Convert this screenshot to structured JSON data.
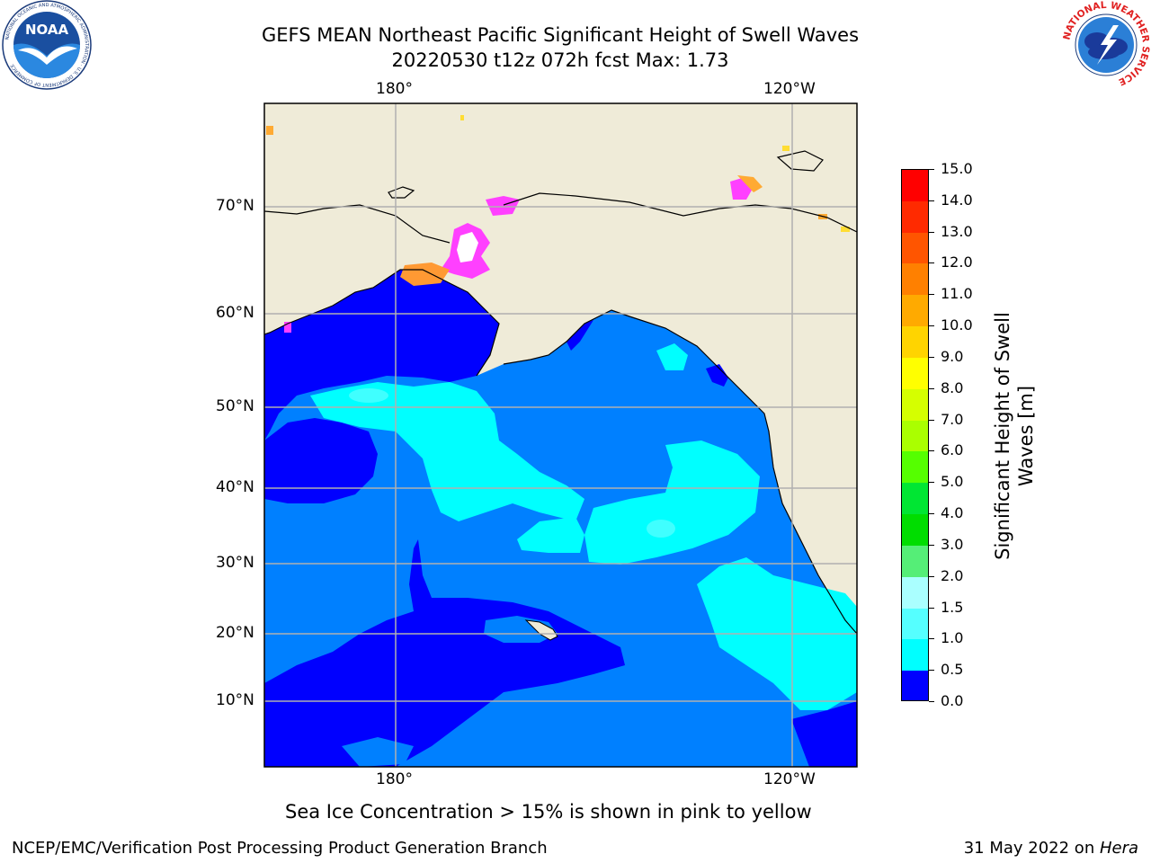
{
  "title": {
    "line1": "GEFS MEAN Northeast Pacific Significant Height of Swell Waves",
    "line2": "20220530 t12z 072h fcst   Max: 1.73"
  },
  "logos": {
    "left": {
      "name": "noaa-logo",
      "text": "NOAA",
      "ring_text": "NATIONAL OCEANIC AND ATMOSPHERIC ADMINISTRATION · U.S. DEPARTMENT OF COMMERCE"
    },
    "right": {
      "name": "nws-logo",
      "ring_text": "NATIONAL WEATHER SERVICE"
    }
  },
  "map": {
    "top_lon_labels": [
      "180°",
      "120°W"
    ],
    "bottom_lon_labels": [
      "180°",
      "120°W"
    ],
    "lat_labels": [
      "70°N",
      "60°N",
      "50°N",
      "40°N",
      "30°N",
      "20°N",
      "10°N"
    ],
    "colors": {
      "land": "#efebd8",
      "c0": "#0000ff",
      "c05": "#0080ff",
      "c10": "#00ffff",
      "c15": "#40ffff",
      "ice_pink": "#ff40ff",
      "ice_orange": "#ff9933",
      "ice_yellow": "#ffdd33",
      "grid": "#b0b0b0"
    }
  },
  "colorbar": {
    "label": "Significant Height of Swell Waves [m]",
    "ticks": [
      "15.0",
      "14.0",
      "13.0",
      "12.0",
      "11.0",
      "10.0",
      "9.0",
      "8.0",
      "7.0",
      "6.0",
      "5.0",
      "4.0",
      "3.0",
      "2.0",
      "1.5",
      "1.0",
      "0.5",
      "0.0"
    ],
    "colors": [
      "#ff0000",
      "#ff2a00",
      "#ff5500",
      "#ff8000",
      "#ffaa00",
      "#ffd400",
      "#ffff00",
      "#d5ff00",
      "#aaff00",
      "#55ff00",
      "#00e633",
      "#00dd00",
      "#55ee77",
      "#aaffff",
      "#55ffff",
      "#00ffff",
      "#0080ff",
      "#0000ff"
    ]
  },
  "caption": "Sea Ice Concentration > 15% is shown in pink to yellow",
  "footer": {
    "left": "NCEP/EMC/Verification Post Processing Product Generation Branch",
    "right_prefix": "31 May 2022 on ",
    "right_host": "Hera"
  }
}
